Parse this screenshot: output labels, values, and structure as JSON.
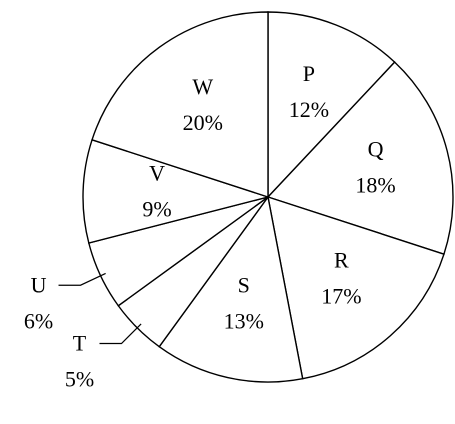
{
  "chart_data": {
    "type": "pie",
    "categories": [
      "P",
      "Q",
      "R",
      "S",
      "T",
      "U",
      "V",
      "W"
    ],
    "values": [
      12,
      18,
      17,
      13,
      5,
      6,
      9,
      20
    ],
    "value_labels": [
      "12%",
      "18%",
      "17%",
      "13%",
      "5%",
      "6%",
      "9%",
      "20%"
    ],
    "color": "#ffffff"
  }
}
